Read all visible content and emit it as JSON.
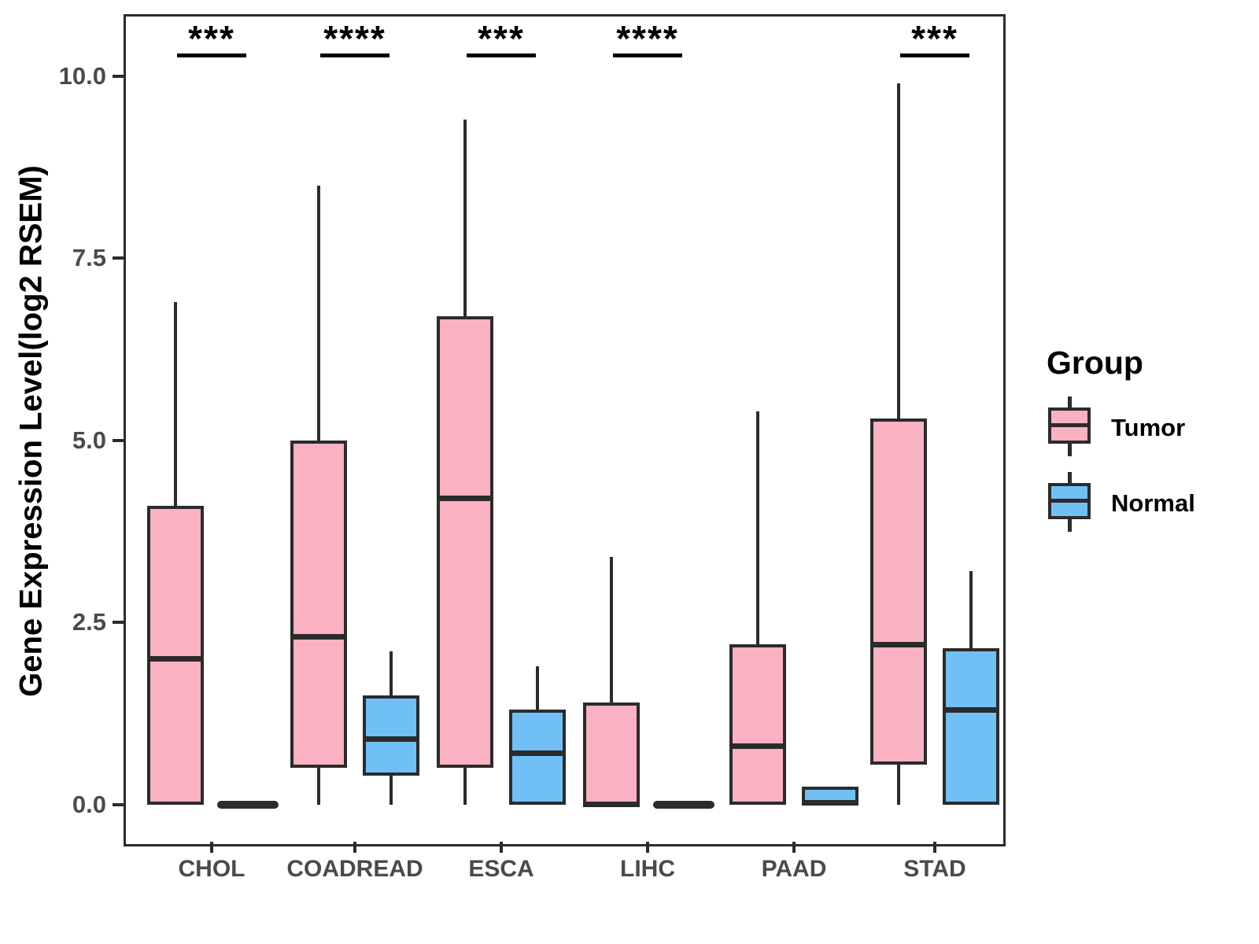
{
  "figure": {
    "background": "#ffffff",
    "line_color": "#2b2b2b",
    "tick_text_color": "#4a4a4a",
    "legend": {
      "title": "Group",
      "entries": [
        {
          "label": "Tumor",
          "color": "#FAB1C1"
        },
        {
          "label": "Normal",
          "color": "#70C0F6"
        }
      ]
    }
  },
  "chart_data": {
    "type": "grouped_boxplot",
    "title": "",
    "ylabel": "Gene Expression Level(log2 RSEM)",
    "xlabel": "",
    "categories": [
      "CHOL",
      "COADREAD",
      "ESCA",
      "LIHC",
      "PAAD",
      "STAD"
    ],
    "groups": [
      "Tumor",
      "Normal"
    ],
    "yticks": [
      0.0,
      2.5,
      5.0,
      7.5,
      10.0
    ],
    "ylim": [
      -0.51,
      10.85
    ],
    "grid": false,
    "legend_position": "right",
    "significance": [
      "***",
      "****",
      "***",
      "****",
      null,
      "***"
    ],
    "series": [
      {
        "name": "Tumor",
        "color": "#FAB1C1",
        "boxes": [
          {
            "whisker_low": 0.0,
            "q1": 0.0,
            "median": 2.0,
            "q3": 4.1,
            "whisker_high": 6.9
          },
          {
            "whisker_low": 0.0,
            "q1": 0.5,
            "median": 2.3,
            "q3": 5.0,
            "whisker_high": 8.5
          },
          {
            "whisker_low": 0.0,
            "q1": 0.5,
            "median": 4.2,
            "q3": 6.7,
            "whisker_high": 9.4
          },
          {
            "whisker_low": 0.0,
            "q1": 0.0,
            "median": 0.0,
            "q3": 1.4,
            "whisker_high": 3.4
          },
          {
            "whisker_low": 0.0,
            "q1": 0.0,
            "median": 0.8,
            "q3": 2.2,
            "whisker_high": 5.4
          },
          {
            "whisker_low": 0.0,
            "q1": 0.55,
            "median": 2.2,
            "q3": 5.3,
            "whisker_high": 9.9
          }
        ]
      },
      {
        "name": "Normal",
        "color": "#70C0F6",
        "boxes": [
          {
            "whisker_low": 0.0,
            "q1": 0.0,
            "median": 0.0,
            "q3": 0.0,
            "whisker_high": 0.0
          },
          {
            "whisker_low": 0.0,
            "q1": 0.4,
            "median": 0.9,
            "q3": 1.5,
            "whisker_high": 2.1
          },
          {
            "whisker_low": 0.0,
            "q1": 0.0,
            "median": 0.7,
            "q3": 1.3,
            "whisker_high": 1.9
          },
          {
            "whisker_low": 0.0,
            "q1": 0.0,
            "median": 0.0,
            "q3": 0.0,
            "whisker_high": 0.0
          },
          {
            "whisker_low": 0.0,
            "q1": 0.0,
            "median": 0.02,
            "q3": 0.25,
            "whisker_high": 0.25
          },
          {
            "whisker_low": 0.0,
            "q1": 0.0,
            "median": 1.3,
            "q3": 2.15,
            "whisker_high": 3.2
          }
        ]
      }
    ]
  }
}
